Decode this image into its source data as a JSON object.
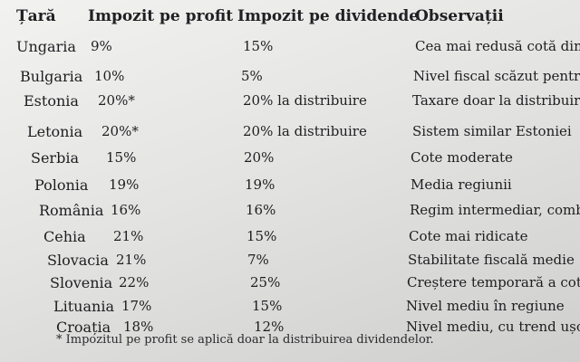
{
  "table": {
    "headers": [
      "Țară",
      "Impozit pe profit",
      "Impozit pe dividende",
      "Observații"
    ],
    "rows": [
      {
        "country": "Ungaria",
        "profit": "9%",
        "dividend": "15%",
        "note": "Cea mai redusă cotă din U"
      },
      {
        "country": "Bulgaria",
        "profit": "10%",
        "dividend": "5%",
        "note": "Nivel fiscal scăzut pentru"
      },
      {
        "country": "Estonia",
        "profit": "20%*",
        "dividend": "20% la distribuire",
        "note": "Taxare doar la distribuire"
      },
      {
        "country": "Letonia",
        "profit": "20%*",
        "dividend": "20% la distribuire",
        "note": "Sistem similar Estoniei"
      },
      {
        "country": "Serbia",
        "profit": "15%",
        "dividend": "20%",
        "note": "Cote moderate"
      },
      {
        "country": "Polonia",
        "profit": "19%",
        "dividend": "19%",
        "note": "Media regiunii"
      },
      {
        "country": "România",
        "profit": "16%",
        "dividend": "16%",
        "note": "Regim intermediar, comb"
      },
      {
        "country": "Cehia",
        "profit": "21%",
        "dividend": "15%",
        "note": "Cote mai ridicate"
      },
      {
        "country": "Slovacia",
        "profit": "21%",
        "dividend": "7%",
        "note": "Stabilitate fiscală medie"
      },
      {
        "country": "Slovenia",
        "profit": "22%",
        "dividend": "25%",
        "note": "Creștere temporară a cot"
      },
      {
        "country": "Lituania",
        "profit": "17%",
        "dividend": "15%",
        "note": "Nivel mediu în regiune"
      },
      {
        "country": "Croația",
        "profit": "18%",
        "dividend": "12%",
        "note": "Nivel mediu, cu trend ușo"
      }
    ],
    "footnote": "* Impozitul pe profit se aplică doar la distribuirea dividendelor."
  }
}
